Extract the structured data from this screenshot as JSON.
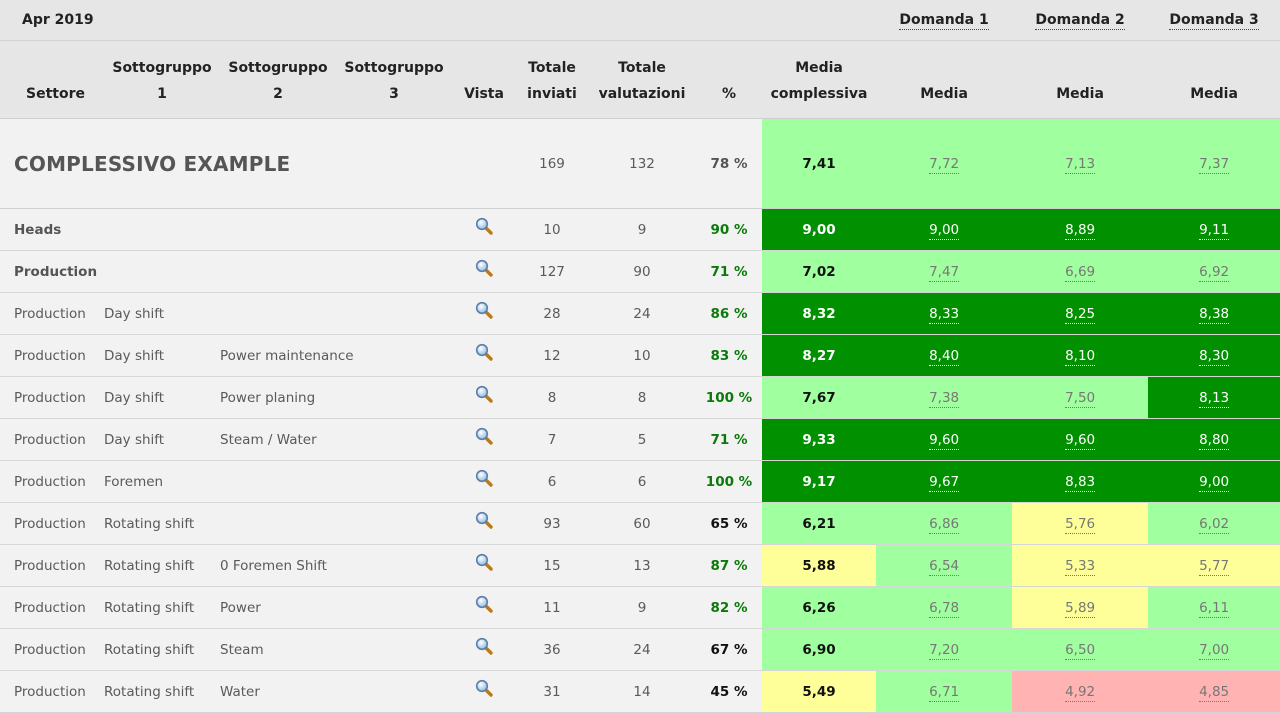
{
  "header": {
    "period": "Apr 2019",
    "domande": [
      "Domanda 1",
      "Domanda 2",
      "Domanda 3"
    ]
  },
  "columns": {
    "settore": "Settore",
    "sottogruppo1": [
      "Sottogruppo",
      "1"
    ],
    "sottogruppo2": [
      "Sottogruppo",
      "2"
    ],
    "sottogruppo3": [
      "Sottogruppo",
      "3"
    ],
    "vista": "Vista",
    "totale_inviati": [
      "Totale",
      "inviati"
    ],
    "totale_valutazioni": [
      "Totale",
      "valutazioni"
    ],
    "percent": "%",
    "media_complessiva": [
      "Media",
      "complessiva"
    ],
    "media": "Media"
  },
  "colors": {
    "dark_green": "#009000",
    "light_green": "#a0ff9e",
    "yellow": "#ffff99",
    "red": "#ffb3b3",
    "pct_green": "#0a7a0a"
  },
  "total": {
    "label": "COMPLESSIVO EXAMPLE",
    "inviati": "169",
    "valutazioni": "132",
    "pct": "78 %",
    "media": "7,41",
    "d1": "7,72",
    "d2": "7,13",
    "d3": "7,37"
  },
  "rows": [
    {
      "settore": "Heads",
      "sub1": "",
      "sub2": "",
      "inviati": "10",
      "valutazioni": "9",
      "pct": "90 %",
      "media": "9,00",
      "d1": "9,00",
      "d2": "8,89",
      "d3": "9,11"
    },
    {
      "settore": "Production",
      "sub1": "",
      "sub2": "",
      "inviati": "127",
      "valutazioni": "90",
      "pct": "71 %",
      "media": "7,02",
      "d1": "7,47",
      "d2": "6,69",
      "d3": "6,92"
    },
    {
      "settore": "Production",
      "sub1": "Day shift",
      "sub2": "",
      "inviati": "28",
      "valutazioni": "24",
      "pct": "86 %",
      "media": "8,32",
      "d1": "8,33",
      "d2": "8,25",
      "d3": "8,38"
    },
    {
      "settore": "Production",
      "sub1": "Day shift",
      "sub2": "Power maintenance",
      "inviati": "12",
      "valutazioni": "10",
      "pct": "83 %",
      "media": "8,27",
      "d1": "8,40",
      "d2": "8,10",
      "d3": "8,30"
    },
    {
      "settore": "Production",
      "sub1": "Day shift",
      "sub2": "Power planing",
      "inviati": "8",
      "valutazioni": "8",
      "pct": "100 %",
      "media": "7,67",
      "d1": "7,38",
      "d2": "7,50",
      "d3": "8,13"
    },
    {
      "settore": "Production",
      "sub1": "Day shift",
      "sub2": "Steam / Water",
      "inviati": "7",
      "valutazioni": "5",
      "pct": "71 %",
      "media": "9,33",
      "d1": "9,60",
      "d2": "9,60",
      "d3": "8,80"
    },
    {
      "settore": "Production",
      "sub1": "Foremen",
      "sub2": "",
      "inviati": "6",
      "valutazioni": "6",
      "pct": "100 %",
      "media": "9,17",
      "d1": "9,67",
      "d2": "8,83",
      "d3": "9,00"
    },
    {
      "settore": "Production",
      "sub1": "Rotating shift",
      "sub2": "",
      "inviati": "93",
      "valutazioni": "60",
      "pct": "65 %",
      "media": "6,21",
      "d1": "6,86",
      "d2": "5,76",
      "d3": "6,02"
    },
    {
      "settore": "Production",
      "sub1": "Rotating shift",
      "sub2": "0 Foremen Shift",
      "inviati": "15",
      "valutazioni": "13",
      "pct": "87 %",
      "media": "5,88",
      "d1": "6,54",
      "d2": "5,33",
      "d3": "5,77"
    },
    {
      "settore": "Production",
      "sub1": "Rotating shift",
      "sub2": "Power",
      "inviati": "11",
      "valutazioni": "9",
      "pct": "82 %",
      "media": "6,26",
      "d1": "6,78",
      "d2": "5,89",
      "d3": "6,11"
    },
    {
      "settore": "Production",
      "sub1": "Rotating shift",
      "sub2": "Steam",
      "inviati": "36",
      "valutazioni": "24",
      "pct": "67 %",
      "media": "6,90",
      "d1": "7,20",
      "d2": "6,50",
      "d3": "7,00"
    },
    {
      "settore": "Production",
      "sub1": "Rotating shift",
      "sub2": "Water",
      "inviati": "31",
      "valutazioni": "14",
      "pct": "45 %",
      "media": "5,49",
      "d1": "6,71",
      "d2": "4,92",
      "d3": "4,85"
    }
  ]
}
